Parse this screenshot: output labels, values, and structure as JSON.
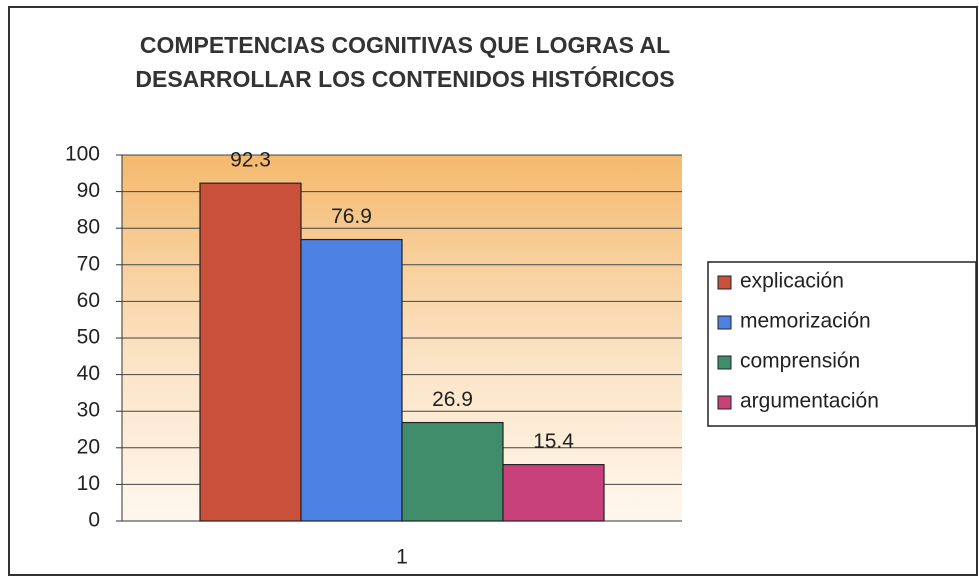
{
  "chart_data": {
    "type": "bar",
    "title": "COMPETENCIAS COGNITIVAS QUE LOGRAS AL DESARROLLAR LOS CONTENIDOS HISTÓRICOS",
    "categories": [
      "1"
    ],
    "series": [
      {
        "name": "explicación",
        "color": "#c9503a",
        "values": [
          92.3
        ]
      },
      {
        "name": "memorización",
        "color": "#4d82e3",
        "values": [
          76.9
        ]
      },
      {
        "name": "comprensión",
        "color": "#3f8d6a",
        "values": [
          26.9
        ]
      },
      {
        "name": "argumentación",
        "color": "#c9417a",
        "values": [
          15.4
        ]
      }
    ],
    "ylim": [
      0,
      100
    ],
    "yticks": [
      0,
      10,
      20,
      30,
      40,
      50,
      60,
      70,
      80,
      90,
      100
    ],
    "grid": true,
    "legend": "right"
  }
}
